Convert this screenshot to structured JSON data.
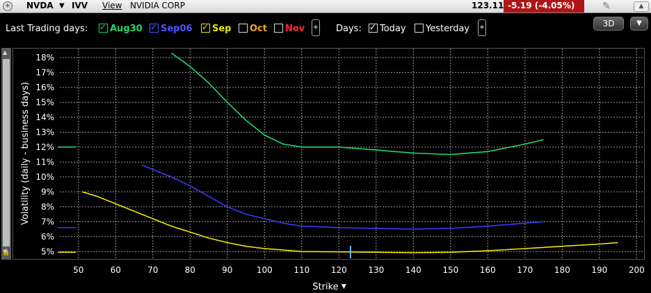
{
  "header": {
    "symbol": "NVDA",
    "symbol_arrow": "▼",
    "source": "IVV",
    "view_menu": "View",
    "company": "NVIDIA CORP",
    "price": "123.11",
    "change": "-5.19 (-4.05%)"
  },
  "toolbar": {
    "last_trading_label": "Last Trading days:",
    "expiries": [
      {
        "label": "Aug30",
        "checked": true,
        "color": "#21d66a"
      },
      {
        "label": "Sep06",
        "checked": true,
        "color": "#4b55ff"
      },
      {
        "label": "Sep",
        "checked": true,
        "color": "#f2e600"
      },
      {
        "label": "Oct",
        "checked": false,
        "color": "#f5a623"
      },
      {
        "label": "Nov",
        "checked": false,
        "color": "#ff2a2a"
      }
    ],
    "days_label": "Days:",
    "today_label": "Today",
    "today_checked": true,
    "yesterday_label": "Yesterday",
    "yesterday_checked": false,
    "plus": "+",
    "btn_3d": "3D",
    "btn_menu": "▼"
  },
  "chart_data": {
    "type": "line",
    "xlabel": "Strike",
    "xlabel_arrow": "▼",
    "ylabel": "Volatility (daily - business days)",
    "xlim": [
      45,
      202
    ],
    "ylim": [
      4.5,
      18.6
    ],
    "xticks": [
      50,
      60,
      70,
      80,
      90,
      100,
      110,
      120,
      130,
      140,
      150,
      160,
      170,
      180,
      190,
      200
    ],
    "yticks": [
      5,
      6,
      7,
      8,
      9,
      10,
      11,
      12,
      13,
      14,
      15,
      16,
      17,
      18
    ],
    "ytick_suffix": "%",
    "grid": true,
    "underlying_price": 123.11,
    "series": [
      {
        "name": "Aug30",
        "color": "#21d66a",
        "marker_y": 12.0,
        "points": [
          [
            75,
            18.3
          ],
          [
            80,
            17.4
          ],
          [
            85,
            16.3
          ],
          [
            90,
            15.0
          ],
          [
            95,
            13.8
          ],
          [
            100,
            12.8
          ],
          [
            105,
            12.2
          ],
          [
            110,
            12.0
          ],
          [
            120,
            12.0
          ],
          [
            130,
            11.8
          ],
          [
            140,
            11.6
          ],
          [
            150,
            11.5
          ],
          [
            160,
            11.7
          ],
          [
            170,
            12.2
          ],
          [
            175,
            12.5
          ]
        ]
      },
      {
        "name": "Sep06",
        "color": "#3a3aff",
        "marker_y": 6.6,
        "points": [
          [
            67,
            10.8
          ],
          [
            70,
            10.5
          ],
          [
            75,
            10.0
          ],
          [
            80,
            9.4
          ],
          [
            85,
            8.7
          ],
          [
            90,
            8.0
          ],
          [
            95,
            7.5
          ],
          [
            100,
            7.2
          ],
          [
            105,
            6.9
          ],
          [
            110,
            6.7
          ],
          [
            120,
            6.6
          ],
          [
            130,
            6.55
          ],
          [
            140,
            6.5
          ],
          [
            150,
            6.55
          ],
          [
            160,
            6.7
          ],
          [
            170,
            6.9
          ],
          [
            175,
            7.0
          ]
        ]
      },
      {
        "name": "Sep",
        "color": "#f2e600",
        "marker_y": 4.95,
        "points": [
          [
            51,
            9.0
          ],
          [
            55,
            8.7
          ],
          [
            60,
            8.2
          ],
          [
            65,
            7.7
          ],
          [
            70,
            7.2
          ],
          [
            75,
            6.7
          ],
          [
            80,
            6.3
          ],
          [
            85,
            5.9
          ],
          [
            90,
            5.6
          ],
          [
            95,
            5.35
          ],
          [
            100,
            5.2
          ],
          [
            105,
            5.1
          ],
          [
            110,
            5.0
          ],
          [
            120,
            4.98
          ],
          [
            130,
            4.95
          ],
          [
            140,
            4.92
          ],
          [
            150,
            4.95
          ],
          [
            160,
            5.05
          ],
          [
            170,
            5.2
          ],
          [
            180,
            5.35
          ],
          [
            190,
            5.5
          ],
          [
            195,
            5.6
          ]
        ]
      }
    ]
  }
}
